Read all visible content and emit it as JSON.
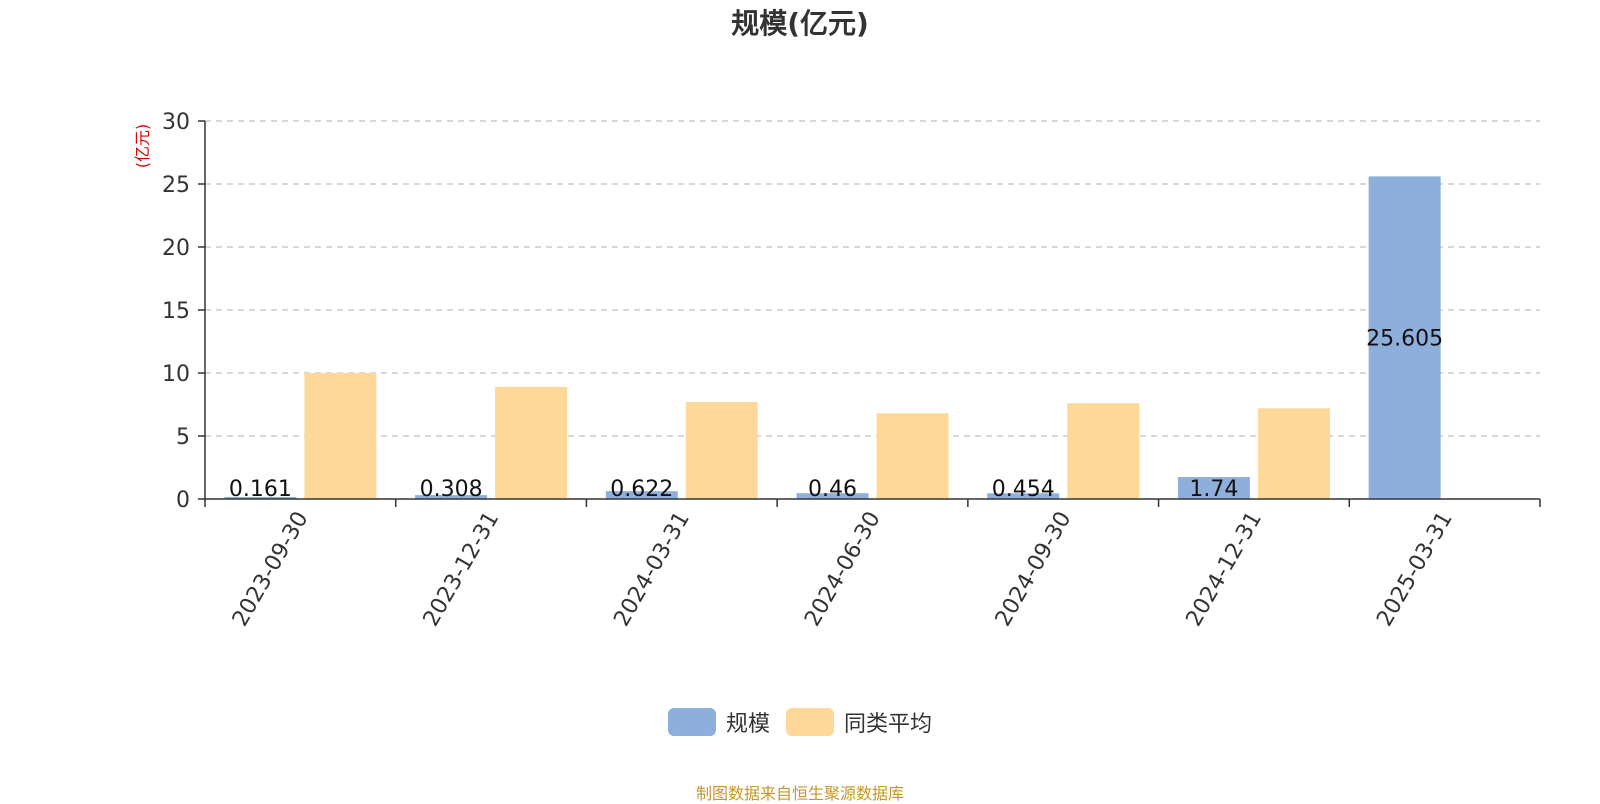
{
  "chart_data": {
    "type": "bar",
    "title": "规模(亿元)",
    "ylabel": "(亿元)",
    "xlabel": "",
    "ylim": [
      0,
      30
    ],
    "yticks": [
      0,
      5,
      10,
      15,
      20,
      25,
      30
    ],
    "grid": true,
    "legend_position": "bottom",
    "categories": [
      "2023-09-30",
      "2023-12-31",
      "2024-03-31",
      "2024-06-30",
      "2024-09-30",
      "2024-12-31",
      "2025-03-31"
    ],
    "series": [
      {
        "name": "规模",
        "color": "#8eaedb",
        "values": [
          0.161,
          0.308,
          0.622,
          0.46,
          0.454,
          1.74,
          25.605
        ],
        "labels": [
          "0.161",
          "0.308",
          "0.622",
          "0.46",
          "0.454",
          "1.74",
          "25.605"
        ]
      },
      {
        "name": "同类平均",
        "color": "#fed898",
        "values": [
          10.0,
          8.9,
          7.7,
          6.8,
          7.6,
          7.2,
          null
        ]
      }
    ]
  },
  "legend": {
    "items": [
      {
        "label": "规模",
        "color": "#8eaedb"
      },
      {
        "label": "同类平均",
        "color": "#fed898"
      }
    ]
  },
  "source": "制图数据来自恒生聚源数据库"
}
